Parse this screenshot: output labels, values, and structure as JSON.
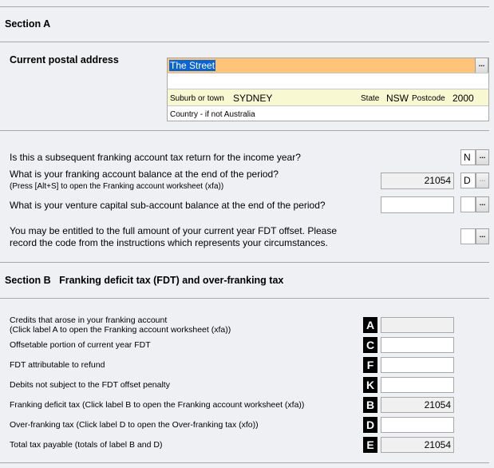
{
  "section_a": {
    "title": "Section A",
    "postal_label": "Current postal address",
    "address": {
      "line1": "The Street",
      "line2": "",
      "suburb_label": "Suburb or town",
      "suburb": "SYDNEY",
      "state_label": "State",
      "state": "NSW",
      "postcode_label": "Postcode",
      "postcode": "2000",
      "country_label": "Country - if not Australia"
    },
    "questions": [
      {
        "text": "Is this a subsequent franking account tax return for the income year?",
        "code": "N"
      },
      {
        "text": "What is your franking account balance at the end of the period?",
        "note": "(Press [Alt+S] to open the Franking account worksheet (xfa))",
        "value": "21054",
        "code": "D"
      },
      {
        "text": "What is your venture capital sub-account balance at the end of the period?",
        "value": "",
        "code": ""
      },
      {
        "text": "You may be entitled to the full amount of your current year FDT offset. Please",
        "text2": "record the code from the instructions which represents your circumstances.",
        "code": ""
      }
    ]
  },
  "section_b": {
    "title": "Section B   Franking deficit tax (FDT) and over-franking tax",
    "rows": [
      {
        "label": "Credits that arose in your franking account",
        "label2": "(Click label A to open the Franking account worksheet (xfa))",
        "code": "A",
        "value": "",
        "readonly": true
      },
      {
        "label": "Offsetable portion of current year FDT",
        "code": "C",
        "value": "",
        "readonly": false
      },
      {
        "label": "FDT attributable to refund",
        "code": "F",
        "value": "",
        "readonly": false
      },
      {
        "label": "Debits not subject to the FDT offset penalty",
        "code": "K",
        "value": "",
        "readonly": false
      },
      {
        "label": "Franking deficit tax (Click label B to open the Franking account worksheet (xfa))",
        "code": "B",
        "value": "21054",
        "readonly": true
      },
      {
        "label": "Over-franking tax (Click label D to open the Over-franking tax (xfo))",
        "code": "D",
        "value": "",
        "readonly": false
      },
      {
        "label": "Total tax payable (totals of label B and D)",
        "code": "E",
        "value": "21054",
        "readonly": true
      }
    ]
  },
  "button_label": "...",
  "colors": {
    "highlight": "#ffc47a",
    "selection": "#0a64d2",
    "address_band": "#f8f8d2"
  }
}
